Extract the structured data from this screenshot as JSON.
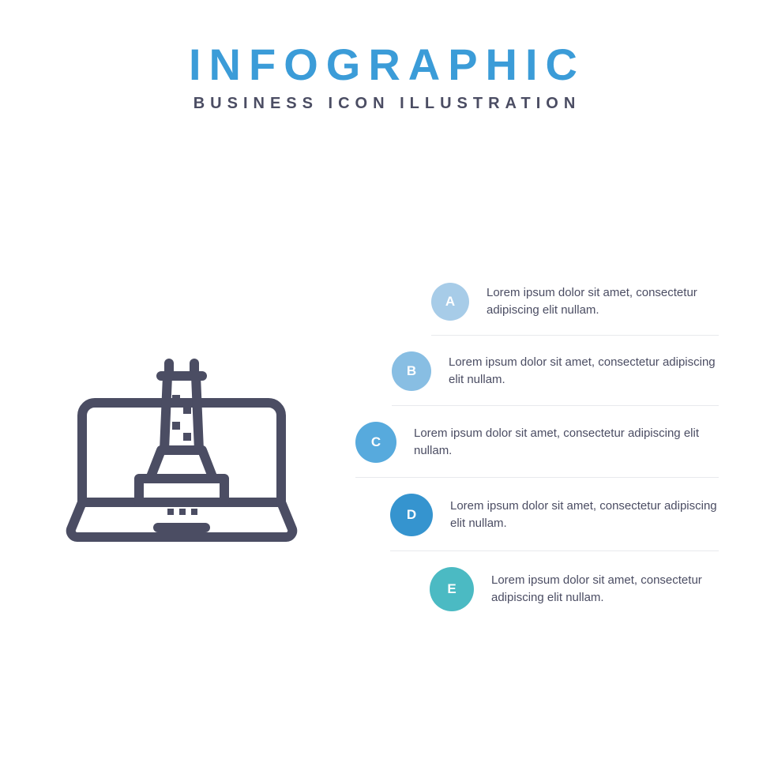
{
  "header": {
    "title": "INFOGRAPHIC",
    "title_color": "#3b9cd8",
    "subtitle": "BUSINESS ICON ILLUSTRATION",
    "subtitle_color": "#4b4d63"
  },
  "icon": {
    "stroke": "#4b4d63",
    "stroke_width": 12,
    "size": 300
  },
  "layout": {
    "badge_sizes": [
      48,
      50,
      52,
      54,
      56
    ],
    "badge_offsets": [
      96,
      46,
      0,
      44,
      94
    ],
    "divider_color": "#e8eaed",
    "background": "#ffffff",
    "text_color": "#4b4d63"
  },
  "steps": [
    {
      "label": "A",
      "color": "#a7cce8",
      "text": "Lorem ipsum dolor sit amet, consectetur adipiscing elit nullam."
    },
    {
      "label": "B",
      "color": "#88bee3",
      "text": "Lorem ipsum dolor sit amet, consectetur adipiscing elit nullam."
    },
    {
      "label": "C",
      "color": "#57aadd",
      "text": "Lorem ipsum dolor sit amet, consectetur adipiscing elit nullam."
    },
    {
      "label": "D",
      "color": "#3594cf",
      "text": "Lorem ipsum dolor sit amet, consectetur adipiscing elit nullam."
    },
    {
      "label": "E",
      "color": "#4bbac3",
      "text": "Lorem ipsum dolor sit amet, consectetur adipiscing elit nullam."
    }
  ]
}
